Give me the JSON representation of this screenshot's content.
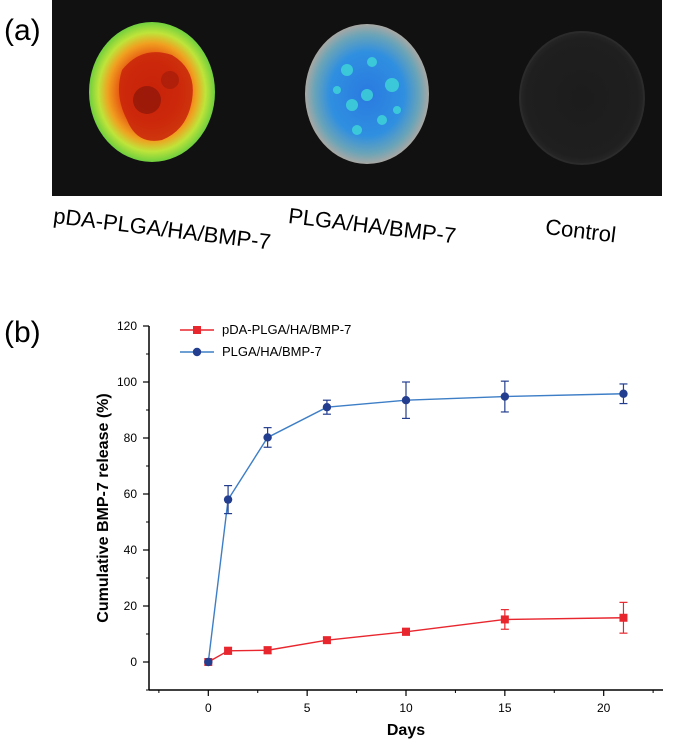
{
  "panel_a": {
    "label": "(a)",
    "samples": [
      "pDA-PLGA/HA/BMP-7",
      "PLGA/HA/BMP-7",
      "Control"
    ],
    "colors": {
      "background": "#111111",
      "hot": "#d42a0a",
      "warm": "#f05a10",
      "mid": "#bde23a",
      "rim": "#7fd33c",
      "blue": "#1e6fe0",
      "cyan": "#34d6d8",
      "halo": "#9a9a98"
    }
  },
  "panel_b": {
    "label": "(b)"
  },
  "chart_data": {
    "type": "line",
    "title": "",
    "xlabel": "Days",
    "ylabel": "Cumulative BMP-7 release (%)",
    "xlim": [
      -3,
      23
    ],
    "ylim": [
      -10,
      120
    ],
    "xticks": [
      0,
      5,
      10,
      15,
      20
    ],
    "yticks": [
      0,
      20,
      40,
      60,
      80,
      100,
      120
    ],
    "grid": false,
    "legend": "top-left",
    "series": [
      {
        "name": "pDA-PLGA/HA/BMP-7",
        "color": "#e8262e",
        "marker": "square",
        "x": [
          0,
          1,
          3,
          6,
          10,
          15,
          21
        ],
        "y": [
          0,
          4,
          4.2,
          7.8,
          10.8,
          15.2,
          15.8
        ],
        "err": [
          0,
          1.2,
          1.2,
          1.0,
          1.2,
          3.5,
          5.5
        ]
      },
      {
        "name": "PLGA/HA/BMP-7",
        "color": "#243e8f",
        "marker": "circle",
        "x": [
          0,
          1,
          3,
          6,
          10,
          15,
          21
        ],
        "y": [
          0,
          58,
          80.2,
          91,
          93.5,
          94.8,
          95.8
        ],
        "err": [
          0,
          5,
          3.5,
          2.5,
          6.5,
          5.5,
          3.5
        ]
      }
    ]
  }
}
